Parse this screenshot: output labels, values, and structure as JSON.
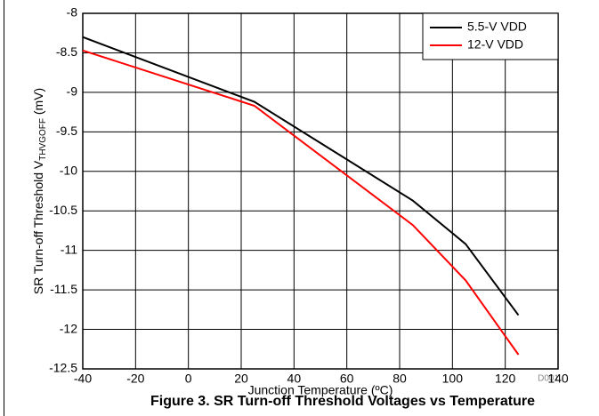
{
  "chart_data": {
    "type": "line",
    "y_label": "SR Turn-off Threshold V",
    "y_label_sub": "THVGOFF",
    "y_label_suffix": " (mV)",
    "x_label": "Junction Temperature (ºC)",
    "annotation": "D001",
    "caption": "Figure 3. SR Turn-off Threshold Voltages vs Temperature",
    "xlim": [
      -40,
      140
    ],
    "xticks": [
      -40,
      -20,
      0,
      20,
      40,
      60,
      80,
      100,
      120,
      140
    ],
    "ylim": [
      -12.5,
      -8
    ],
    "yticks": [
      -8,
      -8.5,
      -9,
      -9.5,
      -10,
      -10.5,
      -11,
      -11.5,
      -12,
      -12.5
    ],
    "grid": true,
    "legend": "upper right",
    "series": [
      {
        "name": "5.5-V VDD",
        "color": "#000000",
        "x": [
          -40,
          25,
          85,
          105,
          125
        ],
        "values": [
          -8.3,
          -9.12,
          -10.37,
          -10.92,
          -11.82
        ]
      },
      {
        "name": "12-V VDD",
        "color": "#ff0000",
        "x": [
          -40,
          25,
          85,
          105,
          125
        ],
        "values": [
          -8.47,
          -9.17,
          -10.68,
          -11.38,
          -12.32
        ]
      }
    ]
  }
}
